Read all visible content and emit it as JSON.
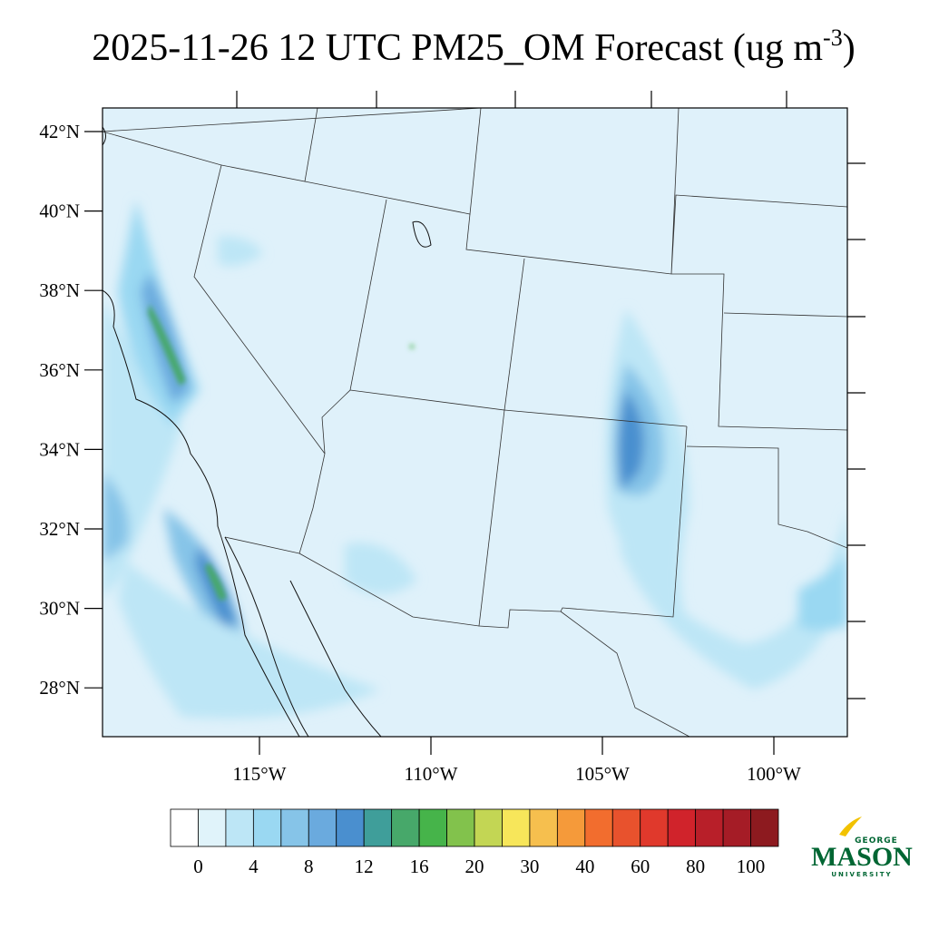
{
  "title": {
    "main": "2025-11-26 12 UTC PM25_OM Forecast (ug m",
    "superscript": "-3",
    "end": ")"
  },
  "map": {
    "lat_labels": [
      "42°N",
      "40°N",
      "38°N",
      "36°N",
      "34°N",
      "32°N",
      "30°N",
      "28°N"
    ],
    "lon_labels": [
      "115°W",
      "110°W",
      "105°W",
      "100°W"
    ]
  },
  "colorbar": {
    "colors": [
      "#ffffff",
      "#e0f3fa",
      "#bde6f6",
      "#9ad8f2",
      "#86c4e8",
      "#6aaade",
      "#4a8fcf",
      "#3f9e9a",
      "#47a86a",
      "#46b44a",
      "#82c24c",
      "#c3d654",
      "#f7e65a",
      "#f6bf4e",
      "#f59a3a",
      "#f26d2e",
      "#e8522d",
      "#e0392c",
      "#d0232b",
      "#b81f29",
      "#a51c26",
      "#8d1a1f"
    ],
    "labels": [
      "0",
      "4",
      "8",
      "12",
      "16",
      "20",
      "30",
      "40",
      "60",
      "80",
      "100"
    ]
  },
  "logo": {
    "top": "GEORGE",
    "main": "MASON",
    "bottom": "UNIVERSITY"
  }
}
